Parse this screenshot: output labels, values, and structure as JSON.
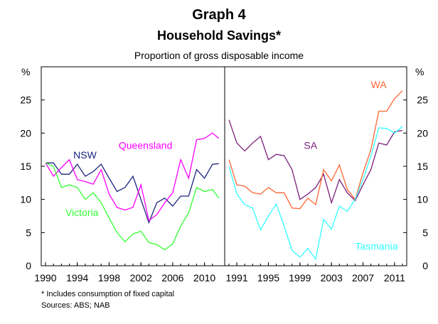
{
  "header": {
    "title": "Graph 4",
    "subtitle": "Household Savings*",
    "description": "Proportion of gross disposable income"
  },
  "footer": {
    "note": "* Includes consumption of fixed capital",
    "sources": "Sources: ABS; NAB"
  },
  "chart_data": {
    "type": "line",
    "ylabel_left": "%",
    "ylabel_right": "%",
    "ylim": [
      0,
      30
    ],
    "yticks": [
      0,
      5,
      10,
      15,
      20,
      25
    ],
    "grid": "horizontal",
    "colors": {
      "NSW": "#1a237e",
      "Queensland": "#ff00ff",
      "Victoria": "#33ff33",
      "SA": "#7b1f7b",
      "WA": "#ff6633",
      "Tasmania": "#33ffff"
    },
    "panels": [
      {
        "xticks": [
          "1990",
          "1994",
          "1998",
          "2002",
          "2006",
          "2010"
        ],
        "xlim": [
          1990,
          2012
        ],
        "years": [
          1990,
          1991,
          1992,
          1993,
          1994,
          1995,
          1996,
          1997,
          1998,
          1999,
          2000,
          2001,
          2002,
          2003,
          2004,
          2005,
          2006,
          2007,
          2008,
          2009,
          2010,
          2011
        ],
        "series": [
          {
            "name": "NSW",
            "values": [
              15.5,
              15.5,
              13.8,
              13.8,
              15.3,
              13.5,
              14.2,
              15.3,
              13.2,
              11.2,
              11.8,
              13.5,
              10.0,
              6.5,
              9.5,
              10.2,
              9.0,
              10.5,
              10.5,
              14.5,
              13.2,
              15.3
            ]
          },
          {
            "name": "Queensland",
            "values": [
              15.5,
              13.5,
              14.8,
              16.0,
              13.0,
              12.7,
              12.3,
              14.5,
              10.8,
              8.8,
              8.4,
              8.8,
              12.2,
              6.8,
              7.7,
              9.5,
              11.0,
              16.0,
              13.2,
              19.0,
              19.2,
              20.0
            ]
          },
          {
            "name": "Victoria",
            "values": [
              15.5,
              15.0,
              11.8,
              12.2,
              11.8,
              10.0,
              11.0,
              9.5,
              7.2,
              5.0,
              3.6,
              4.8,
              5.2,
              3.5,
              3.2,
              2.4,
              3.3,
              6.0,
              8.0,
              11.8,
              11.2,
              11.5
            ]
          }
        ],
        "series_tail": {
          "NSW": 15.4,
          "Queensland": 19.2,
          "Victoria": 10.2
        }
      },
      {
        "xticks": [
          "1991",
          "1995",
          "1999",
          "2003",
          "2007",
          "2011"
        ],
        "xlim": [
          1990,
          2012
        ],
        "years": [
          1990,
          1991,
          1992,
          1993,
          1994,
          1995,
          1996,
          1997,
          1998,
          1999,
          2000,
          2001,
          2002,
          2003,
          2004,
          2005,
          2006,
          2007,
          2008,
          2009,
          2010,
          2011,
          2012
        ],
        "series": [
          {
            "name": "SA",
            "values": [
              22.0,
              18.5,
              17.3,
              18.5,
              19.5,
              16.0,
              16.8,
              16.6,
              14.5,
              10.0,
              10.8,
              11.8,
              13.8,
              9.5,
              13.0,
              11.0,
              9.8,
              12.2,
              14.5,
              18.5,
              18.2,
              20.2,
              20.4
            ]
          },
          {
            "name": "WA",
            "values": [
              16.0,
              12.2,
              12.0,
              11.0,
              10.8,
              11.8,
              11.0,
              11.0,
              8.7,
              8.6,
              10.2,
              9.2,
              14.5,
              12.8,
              15.2,
              11.5,
              10.0,
              14.0,
              17.5,
              23.3,
              23.3,
              25.2,
              26.4
            ]
          },
          {
            "name": "Tasmania",
            "values": [
              15.0,
              10.8,
              9.2,
              8.7,
              5.4,
              7.5,
              9.3,
              6.0,
              2.3,
              1.3,
              2.6,
              1.0,
              7.0,
              5.5,
              9.0,
              8.2,
              10.0,
              13.0,
              16.5,
              20.8,
              20.7,
              20.0,
              21.0
            ]
          }
        ]
      }
    ]
  }
}
